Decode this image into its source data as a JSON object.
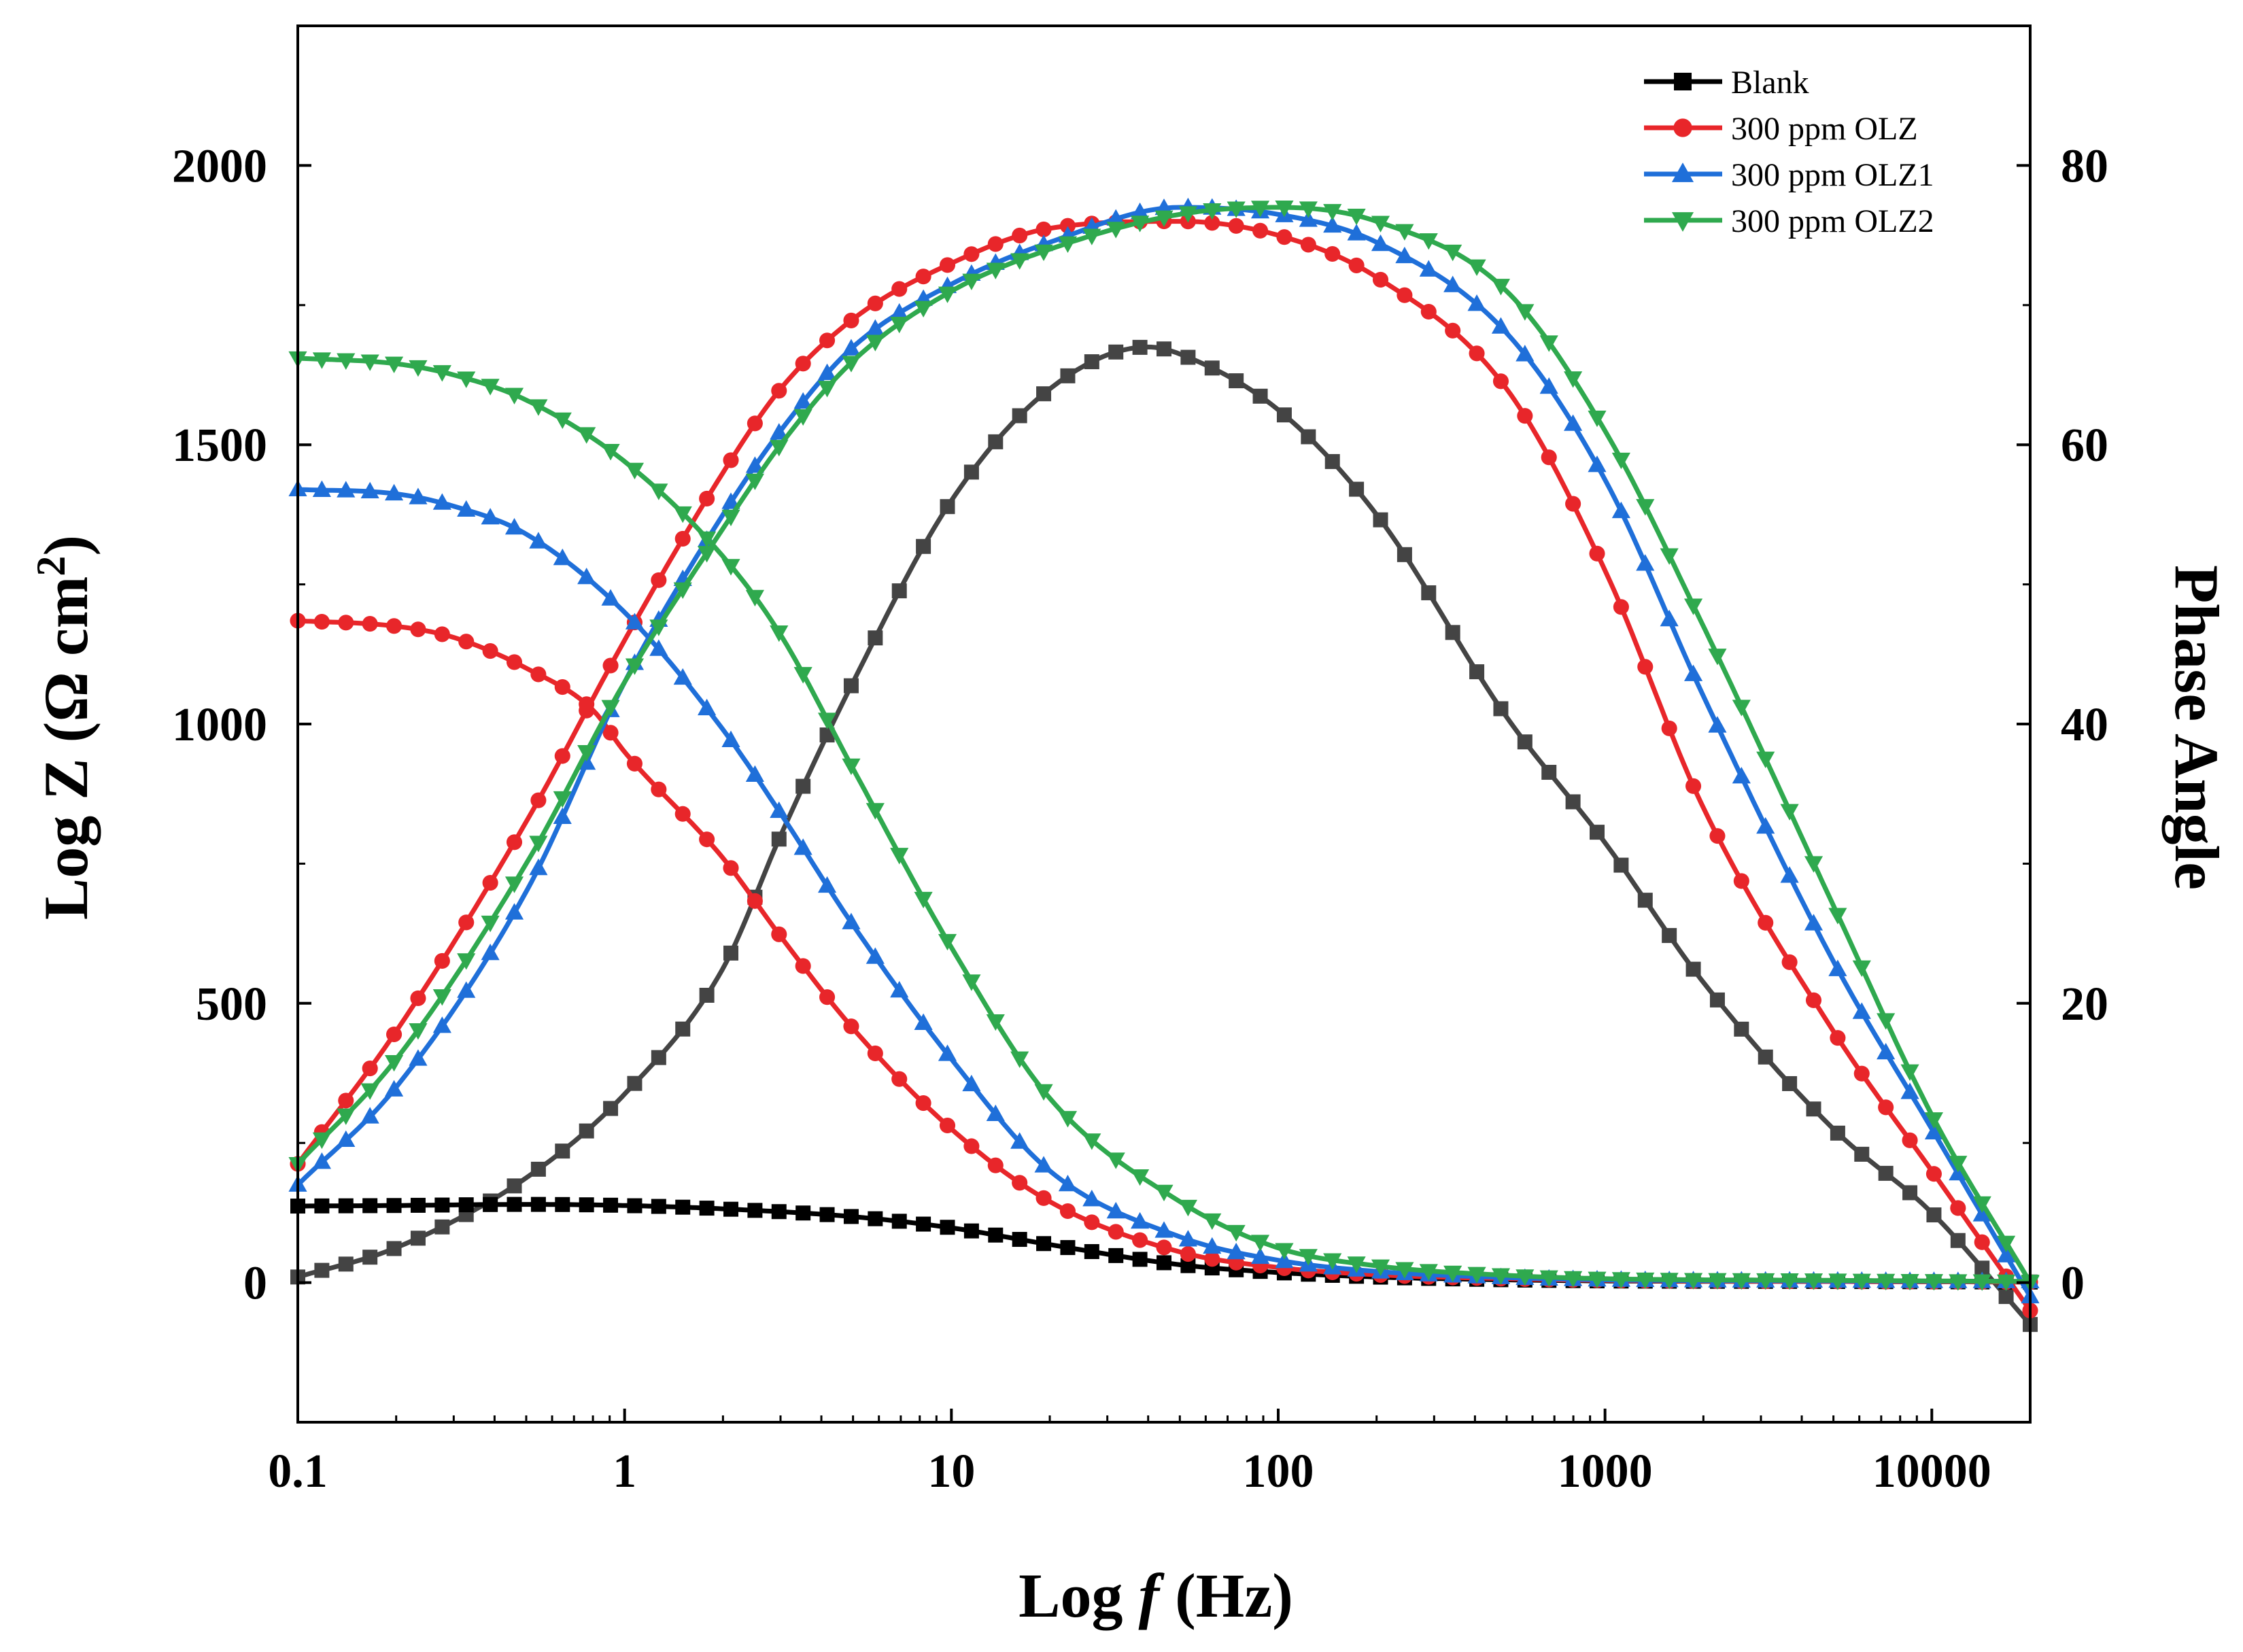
{
  "chart_data": {
    "type": "line",
    "title": "",
    "xlabel_prefix": "Log ",
    "xlabel_var": "f",
    "xlabel_suffix": " (Hz)",
    "ylabel_prefix": "Log Z (Ω cm",
    "ylabel_sup": "2",
    "ylabel_suffix": ")",
    "y2label": "Phase Angle",
    "xscale": "log",
    "xlim": [
      0.1,
      20000
    ],
    "ylim": [
      -250,
      2250
    ],
    "y2lim": [
      -10,
      90
    ],
    "xticks": [
      0.1,
      1,
      10,
      100,
      1000,
      10000
    ],
    "xtick_labels": [
      "0.1",
      "1",
      "10",
      "100",
      "1000",
      "10000"
    ],
    "yticks": [
      0,
      500,
      1000,
      1500,
      2000
    ],
    "ytick_labels": [
      "0",
      "500",
      "1000",
      "1500",
      "2000"
    ],
    "y2ticks": [
      0,
      20,
      40,
      60,
      80
    ],
    "y2tick_labels": [
      "0",
      "20",
      "40",
      "60",
      "80"
    ],
    "grid": false,
    "legend_position": "top-right",
    "series": [
      {
        "name": "Blank",
        "color": "#000000",
        "marker": "square",
        "axis": "left",
        "x": [
          0.1,
          0.2,
          0.5,
          1,
          2,
          5,
          10,
          20,
          50,
          100,
          200,
          500,
          1000,
          5000,
          20000
        ],
        "y": [
          137,
          138,
          140,
          138,
          132,
          118,
          98,
          68,
          32,
          18,
          10,
          5,
          3,
          2,
          1
        ]
      },
      {
        "name": "300 ppm OLZ",
        "color": "#e8262a",
        "marker": "circle",
        "axis": "left",
        "x": [
          0.1,
          0.2,
          0.3,
          0.5,
          0.8,
          1,
          2,
          3,
          5,
          10,
          20,
          50,
          100,
          200,
          500,
          1000,
          5000,
          20000
        ],
        "y": [
          1185,
          1175,
          1155,
          1100,
          1025,
          950,
          760,
          620,
          455,
          275,
          145,
          55,
          27,
          14,
          7,
          4,
          2,
          1
        ]
      },
      {
        "name": "300 ppm OLZ1",
        "color": "#1f6fd9",
        "marker": "triangle-up",
        "axis": "left",
        "x": [
          0.1,
          0.2,
          0.3,
          0.5,
          1,
          2,
          3,
          5,
          10,
          20,
          50,
          100,
          200,
          500,
          1000,
          5000,
          20000
        ],
        "y": [
          1420,
          1412,
          1390,
          1340,
          1200,
          990,
          840,
          640,
          400,
          200,
          82,
          40,
          20,
          9,
          5,
          3,
          2
        ]
      },
      {
        "name": "300 ppm OLZ2",
        "color": "#2fa94e",
        "marker": "triangle-down",
        "axis": "left",
        "x": [
          0.1,
          0.2,
          0.3,
          0.5,
          1,
          2,
          3,
          5,
          10,
          20,
          50,
          100,
          200,
          500,
          1000,
          5000,
          20000
        ],
        "y": [
          1655,
          1645,
          1625,
          1580,
          1470,
          1300,
          1160,
          920,
          600,
          330,
          145,
          62,
          30,
          13,
          7,
          4,
          2
        ]
      },
      {
        "name": "Blank",
        "color": "#444444",
        "marker": "square",
        "axis": "right",
        "x": [
          0.1,
          0.2,
          0.5,
          1,
          2,
          3,
          5,
          10,
          20,
          40,
          50,
          100,
          200,
          500,
          1000,
          2000,
          5000,
          10000,
          20000
        ],
        "y": [
          0.4,
          2.5,
          7.5,
          13.5,
          22.5,
          32,
          43,
          56,
          64,
          67,
          66.5,
          62.5,
          55,
          40.5,
          31.5,
          21.5,
          11,
          5,
          -3
        ]
      },
      {
        "name": "300 ppm OLZ",
        "color": "#e8262a",
        "marker": "circle",
        "axis": "right",
        "x": [
          0.1,
          0.2,
          0.5,
          1,
          2,
          3,
          5,
          10,
          20,
          50,
          100,
          200,
          500,
          1000,
          2000,
          5000,
          10000,
          20000
        ],
        "y": [
          8.5,
          18,
          33,
          46,
          58,
          64,
          69,
          73,
          75.5,
          76,
          75,
          72,
          64,
          51,
          34,
          18,
          8,
          -2
        ]
      },
      {
        "name": "300 ppm OLZ1",
        "color": "#1f6fd9",
        "marker": "triangle-up",
        "axis": "right",
        "x": [
          0.1,
          0.2,
          0.5,
          1,
          2,
          3,
          5,
          10,
          20,
          50,
          100,
          200,
          500,
          1000,
          2000,
          5000,
          10000,
          20000
        ],
        "y": [
          7,
          14,
          28,
          43,
          55,
          61,
          67,
          71.5,
          74.5,
          77,
          76.5,
          74.5,
          68,
          57.5,
          42,
          23,
          11,
          -1
        ]
      },
      {
        "name": "300 ppm OLZ2",
        "color": "#2fa94e",
        "marker": "triangle-down",
        "axis": "right",
        "x": [
          0.1,
          0.2,
          0.5,
          1,
          2,
          3,
          5,
          10,
          20,
          50,
          100,
          200,
          500,
          1000,
          2000,
          5000,
          10000,
          20000
        ],
        "y": [
          8.5,
          16,
          30,
          43,
          54,
          60,
          66,
          71,
          74,
          76.5,
          77,
          76,
          71,
          61,
          47,
          27,
          12,
          0
        ]
      }
    ]
  }
}
